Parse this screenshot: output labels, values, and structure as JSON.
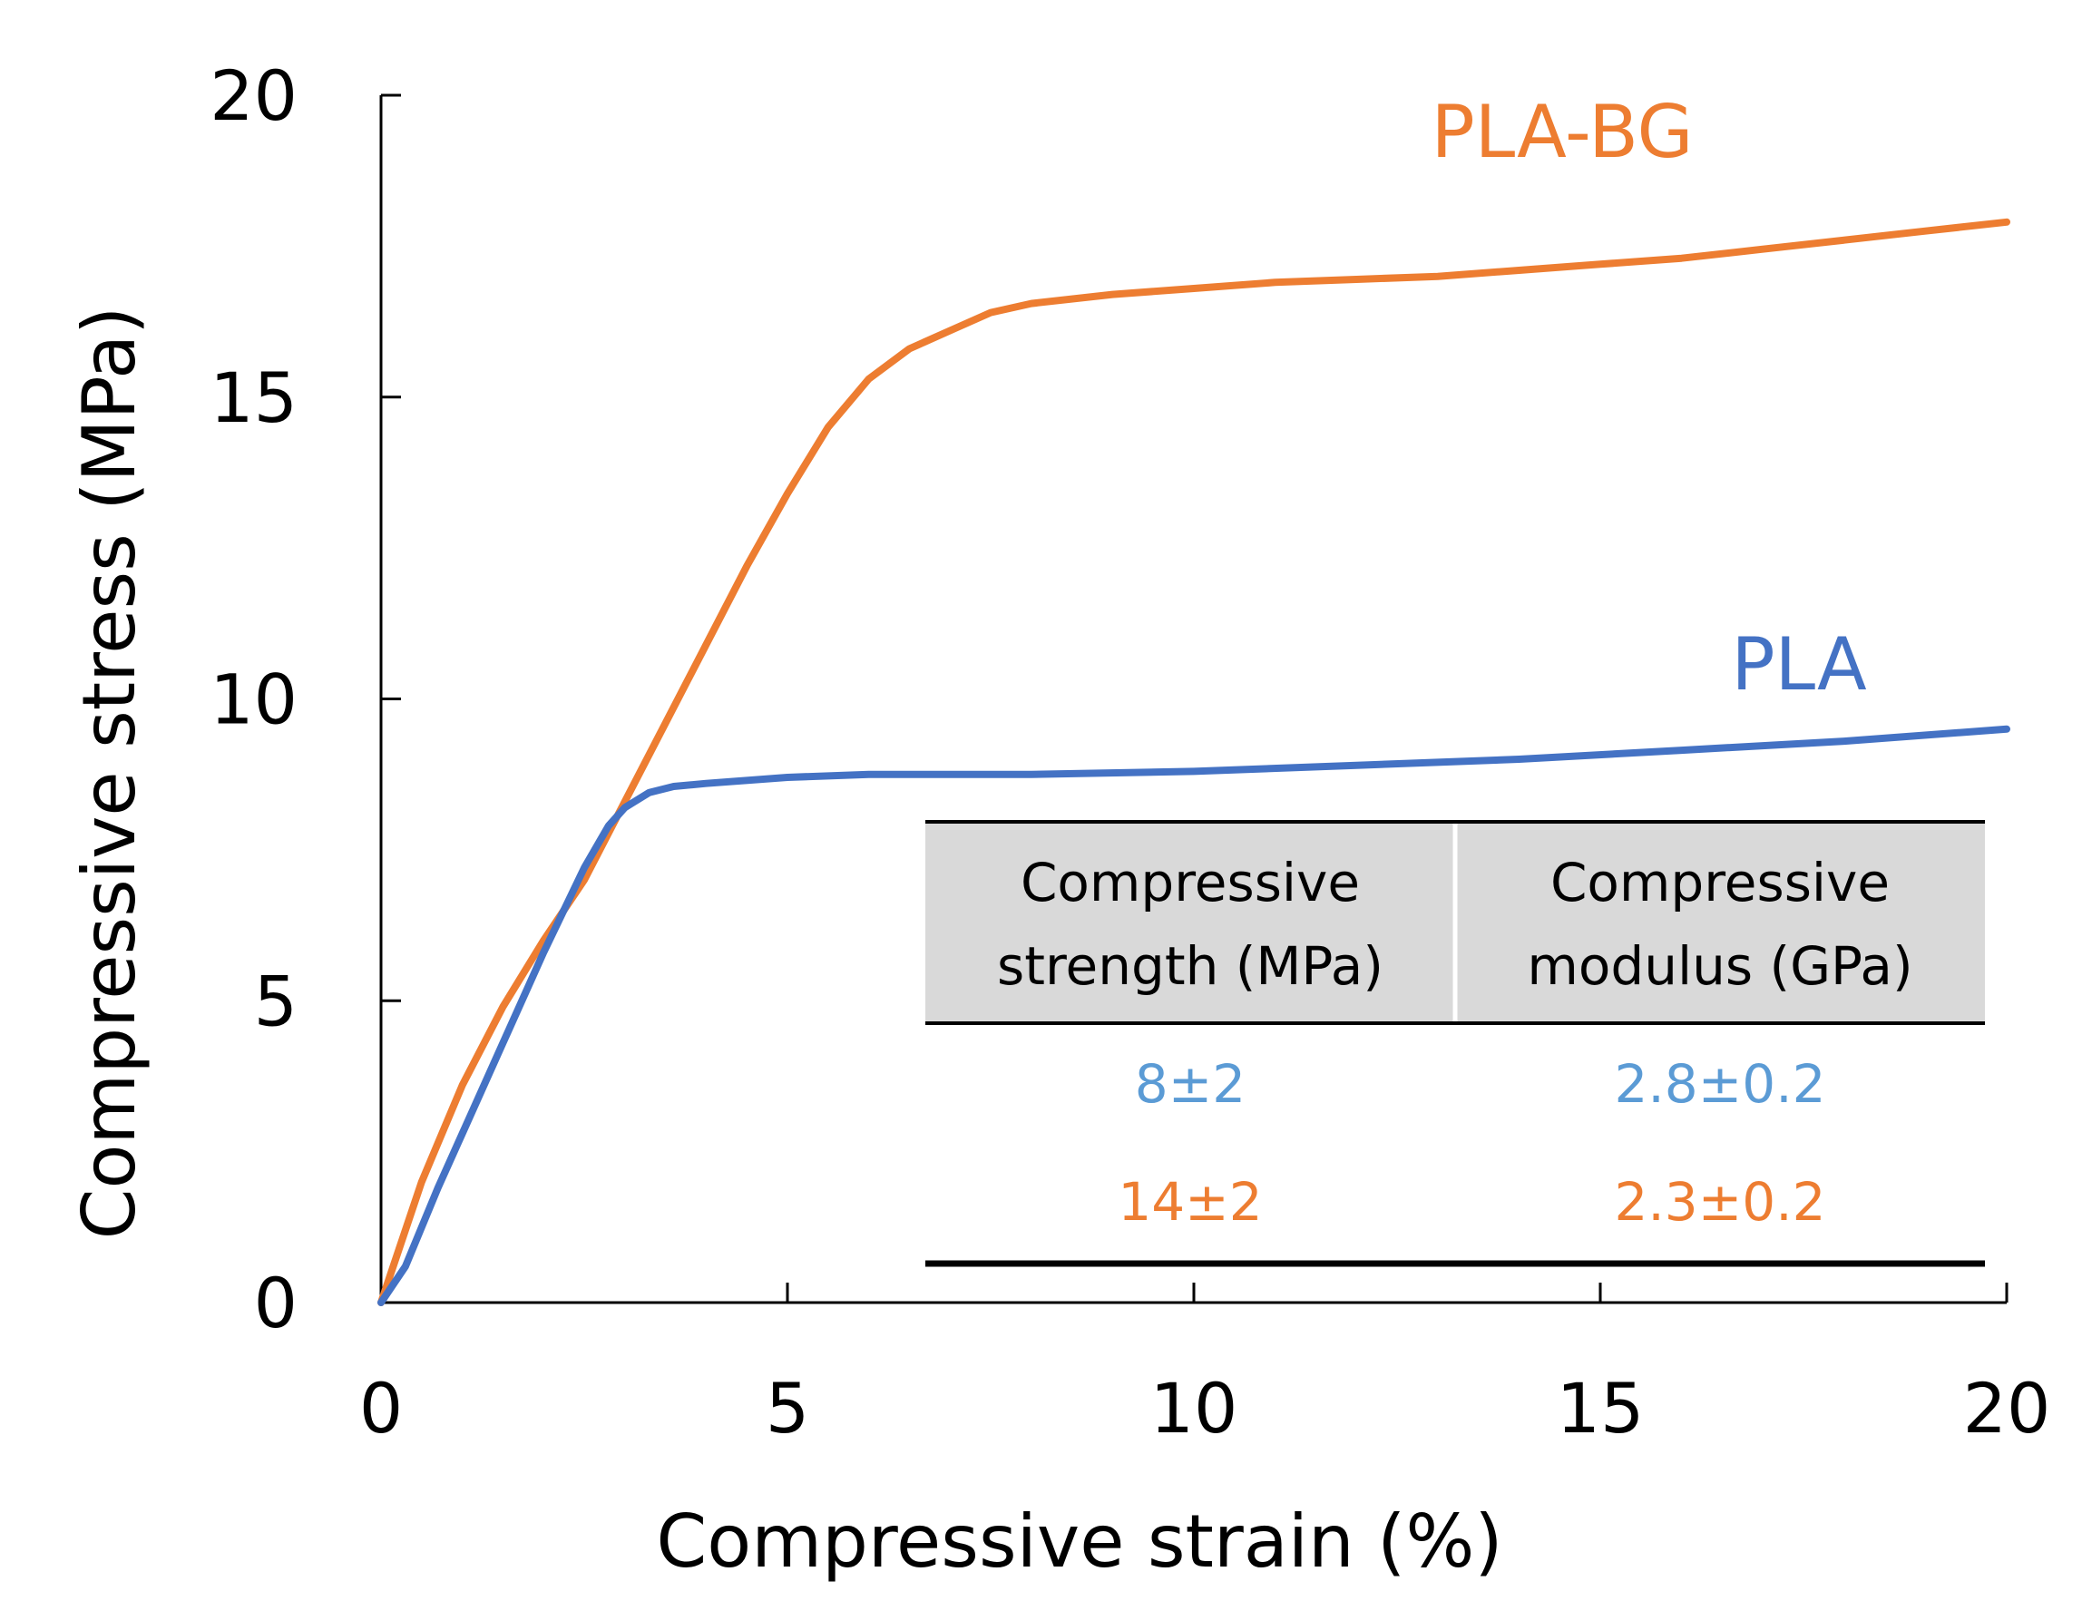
{
  "chart_data": {
    "type": "line",
    "title": "",
    "xlabel": "Compressive strain (%)",
    "ylabel": "Compressive stress (MPa)",
    "xlim": [
      0,
      20
    ],
    "ylim": [
      0,
      20
    ],
    "x_ticks": [
      "0",
      "5",
      "10",
      "15",
      "20"
    ],
    "y_ticks": [
      "0",
      "5",
      "10",
      "15",
      "20"
    ],
    "grid": false,
    "series": [
      {
        "name": "PLA-BG",
        "color": "#ED7D31",
        "x": [
          0,
          0.5,
          1,
          1.5,
          2,
          2.5,
          3,
          3.5,
          4,
          4.5,
          5,
          5.5,
          6,
          6.5,
          7,
          7.5,
          8,
          9,
          10,
          11,
          12,
          13,
          14,
          15,
          16,
          17,
          18,
          19,
          20
        ],
        "y": [
          0,
          2.0,
          3.6,
          4.9,
          6.0,
          7.0,
          8.3,
          9.6,
          10.9,
          12.2,
          13.4,
          14.5,
          15.3,
          15.8,
          16.1,
          16.4,
          16.55,
          16.7,
          16.8,
          16.9,
          16.95,
          17.0,
          17.1,
          17.2,
          17.3,
          17.45,
          17.6,
          17.75,
          17.9
        ]
      },
      {
        "name": "PLA",
        "color": "#4472C4",
        "x": [
          0,
          0.3,
          0.7,
          1,
          1.5,
          2,
          2.5,
          2.8,
          3,
          3.3,
          3.6,
          4,
          5,
          6,
          7,
          8,
          10,
          12,
          14,
          16,
          18,
          20
        ],
        "y": [
          0,
          0.6,
          1.9,
          2.8,
          4.3,
          5.8,
          7.2,
          7.9,
          8.2,
          8.45,
          8.55,
          8.6,
          8.7,
          8.75,
          8.75,
          8.75,
          8.8,
          8.9,
          9.0,
          9.15,
          9.3,
          9.5
        ]
      }
    ],
    "annotations": {
      "label_pla_bg": "PLA-BG",
      "label_pla": "PLA"
    },
    "inset_table": {
      "headers": [
        [
          "Compressive",
          "strength (MPa)"
        ],
        [
          "Compressive",
          "modulus (GPa)"
        ]
      ],
      "rows": [
        {
          "series": "PLA",
          "color": "#5B9BD5",
          "values": [
            "8±2",
            "2.8±0.2"
          ]
        },
        {
          "series": "PLA-BG",
          "color": "#ED7D31",
          "values": [
            "14±2",
            "2.3±0.2"
          ]
        }
      ],
      "header_fill": "#D9D9D9"
    }
  }
}
